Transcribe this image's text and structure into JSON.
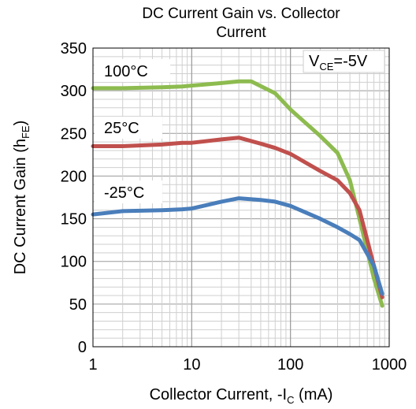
{
  "chart_data": {
    "type": "line",
    "title_line1": "DC Current Gain vs. Collector",
    "title_line2": "Current",
    "xlabel_main": "Collector Current, -I",
    "xlabel_sub": "C",
    "xlabel_unit": " (mA)",
    "ylabel_main": "DC Current Gain (h",
    "ylabel_sub": "FE",
    "ylabel_end": ")",
    "x_scale": "log",
    "xlim": [
      1,
      1000
    ],
    "ylim": [
      0,
      350
    ],
    "x_ticks": [
      1,
      10,
      100,
      1000
    ],
    "x_tick_labels": [
      "1",
      "10",
      "100",
      "1000"
    ],
    "y_ticks": [
      0,
      50,
      100,
      150,
      200,
      250,
      300,
      350
    ],
    "y_tick_labels": [
      "0",
      "50",
      "100",
      "150",
      "200",
      "250",
      "300",
      "350"
    ],
    "grid": true,
    "annotation_main": "V",
    "annotation_sub": "CE",
    "annotation_end": "=-5V",
    "series": [
      {
        "name": "100°C",
        "color": "#8DBB4F",
        "x": [
          1,
          2,
          5,
          8,
          10,
          20,
          30,
          40,
          70,
          100,
          200,
          300,
          400,
          500,
          700,
          850
        ],
        "y": [
          303,
          303,
          304,
          305,
          306,
          309,
          311,
          311,
          297,
          278,
          247,
          227,
          195,
          150,
          80,
          48
        ]
      },
      {
        "name": "25°C",
        "color": "#C0504D",
        "x": [
          1,
          2,
          5,
          8,
          10,
          20,
          30,
          50,
          70,
          100,
          200,
          300,
          400,
          500,
          700,
          850
        ],
        "y": [
          235,
          235,
          237,
          239,
          239,
          243,
          245,
          238,
          233,
          226,
          206,
          195,
          180,
          160,
          95,
          58
        ]
      },
      {
        "name": "-25°C",
        "color": "#4A7EBB",
        "x": [
          1,
          2,
          5,
          8,
          10,
          20,
          30,
          50,
          70,
          100,
          200,
          300,
          400,
          500,
          700,
          850
        ],
        "y": [
          155,
          159,
          160,
          161,
          162,
          170,
          174,
          172,
          170,
          165,
          150,
          140,
          132,
          125,
          95,
          62
        ]
      }
    ],
    "label_positions_for_series": [
      "upper-left",
      "middle-left",
      "lower-left"
    ]
  }
}
